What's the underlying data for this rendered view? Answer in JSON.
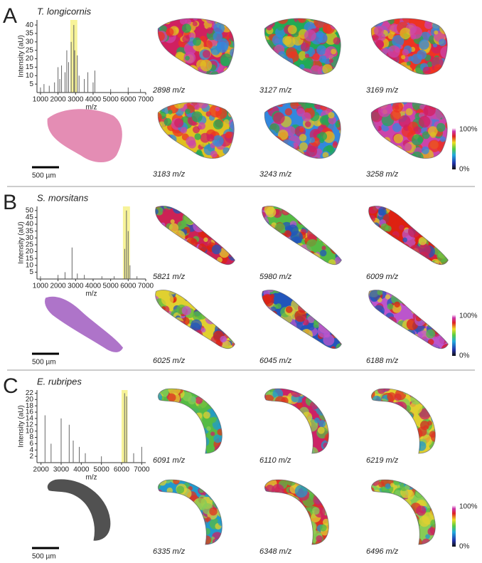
{
  "panels": [
    {
      "label": "A",
      "species": "T. longicornis",
      "spectrum": {
        "type": "stick",
        "xlabel": "m/z",
        "ylabel": "Intensity (aU)",
        "xlim": [
          800,
          7000
        ],
        "ylim": [
          0,
          43
        ],
        "xticks": [
          1000,
          2000,
          3000,
          4000,
          5000,
          6000,
          7000
        ],
        "yticks": [
          5,
          10,
          15,
          20,
          25,
          30,
          35,
          40
        ],
        "highlight": [
          2700,
          3100
        ],
        "x": [
          1000,
          1200,
          1500,
          1800,
          2000,
          2100,
          2200,
          2400,
          2500,
          2600,
          2750,
          2900,
          2950,
          3100,
          3200,
          3500,
          3700,
          4000,
          4100,
          5000,
          6000,
          6700
        ],
        "values": [
          3,
          5,
          4,
          6,
          15,
          8,
          16,
          12,
          25,
          18,
          30,
          40,
          25,
          22,
          10,
          8,
          12,
          6,
          13,
          2,
          3,
          2
        ]
      },
      "images": [
        "2898 m/z",
        "3127 m/z",
        "3169 m/z",
        "3183 m/z",
        "3243 m/z",
        "3258 m/z"
      ],
      "scale_bar": "500 µm",
      "colorbar": {
        "max": "100%",
        "min": "0%"
      }
    },
    {
      "label": "B",
      "species": "S. morsitans",
      "spectrum": {
        "type": "stick",
        "xlabel": "m/z",
        "ylabel": "Intensity (aU)",
        "xlim": [
          800,
          7000
        ],
        "ylim": [
          0,
          53
        ],
        "xticks": [
          1000,
          2000,
          3000,
          4000,
          5000,
          6000,
          7000
        ],
        "yticks": [
          5,
          10,
          15,
          20,
          25,
          30,
          35,
          40,
          45,
          50
        ],
        "highlight": [
          5700,
          6100
        ],
        "x": [
          1000,
          2000,
          2400,
          2800,
          3100,
          3500,
          4500,
          5200,
          5800,
          5900,
          6000,
          6100,
          6500
        ],
        "values": [
          2,
          3,
          5,
          23,
          4,
          3,
          2,
          2,
          22,
          50,
          35,
          10,
          2
        ]
      },
      "images": [
        "5821 m/z",
        "5980 m/z",
        "6009 m/z",
        "6025 m/z",
        "6045 m/z",
        "6188 m/z"
      ],
      "scale_bar": "500 µm",
      "colorbar": {
        "max": "100%",
        "min": "0%"
      }
    },
    {
      "label": "C",
      "species": "E. rubripes",
      "spectrum": {
        "type": "stick",
        "xlabel": "m/z",
        "ylabel": "Intensity (aU)",
        "xlim": [
          1800,
          7200
        ],
        "ylim": [
          0,
          23
        ],
        "xticks": [
          2000,
          3000,
          4000,
          5000,
          6000,
          7000
        ],
        "yticks": [
          2,
          4,
          6,
          8,
          10,
          12,
          14,
          16,
          18,
          20,
          22
        ],
        "highlight": [
          6000,
          6300
        ],
        "x": [
          2200,
          2500,
          3000,
          3400,
          3600,
          3900,
          4200,
          5000,
          6150,
          6250,
          6600,
          7000
        ],
        "values": [
          15,
          6,
          14,
          12,
          7,
          5,
          3,
          2,
          22,
          21,
          3,
          5
        ]
      },
      "images": [
        "6091 m/z",
        "6110 m/z",
        "6219 m/z",
        "6335 m/z",
        "6348 m/z",
        "6496 m/z"
      ],
      "scale_bar": "500 µm",
      "colorbar": {
        "max": "100%",
        "min": "0%"
      }
    }
  ]
}
